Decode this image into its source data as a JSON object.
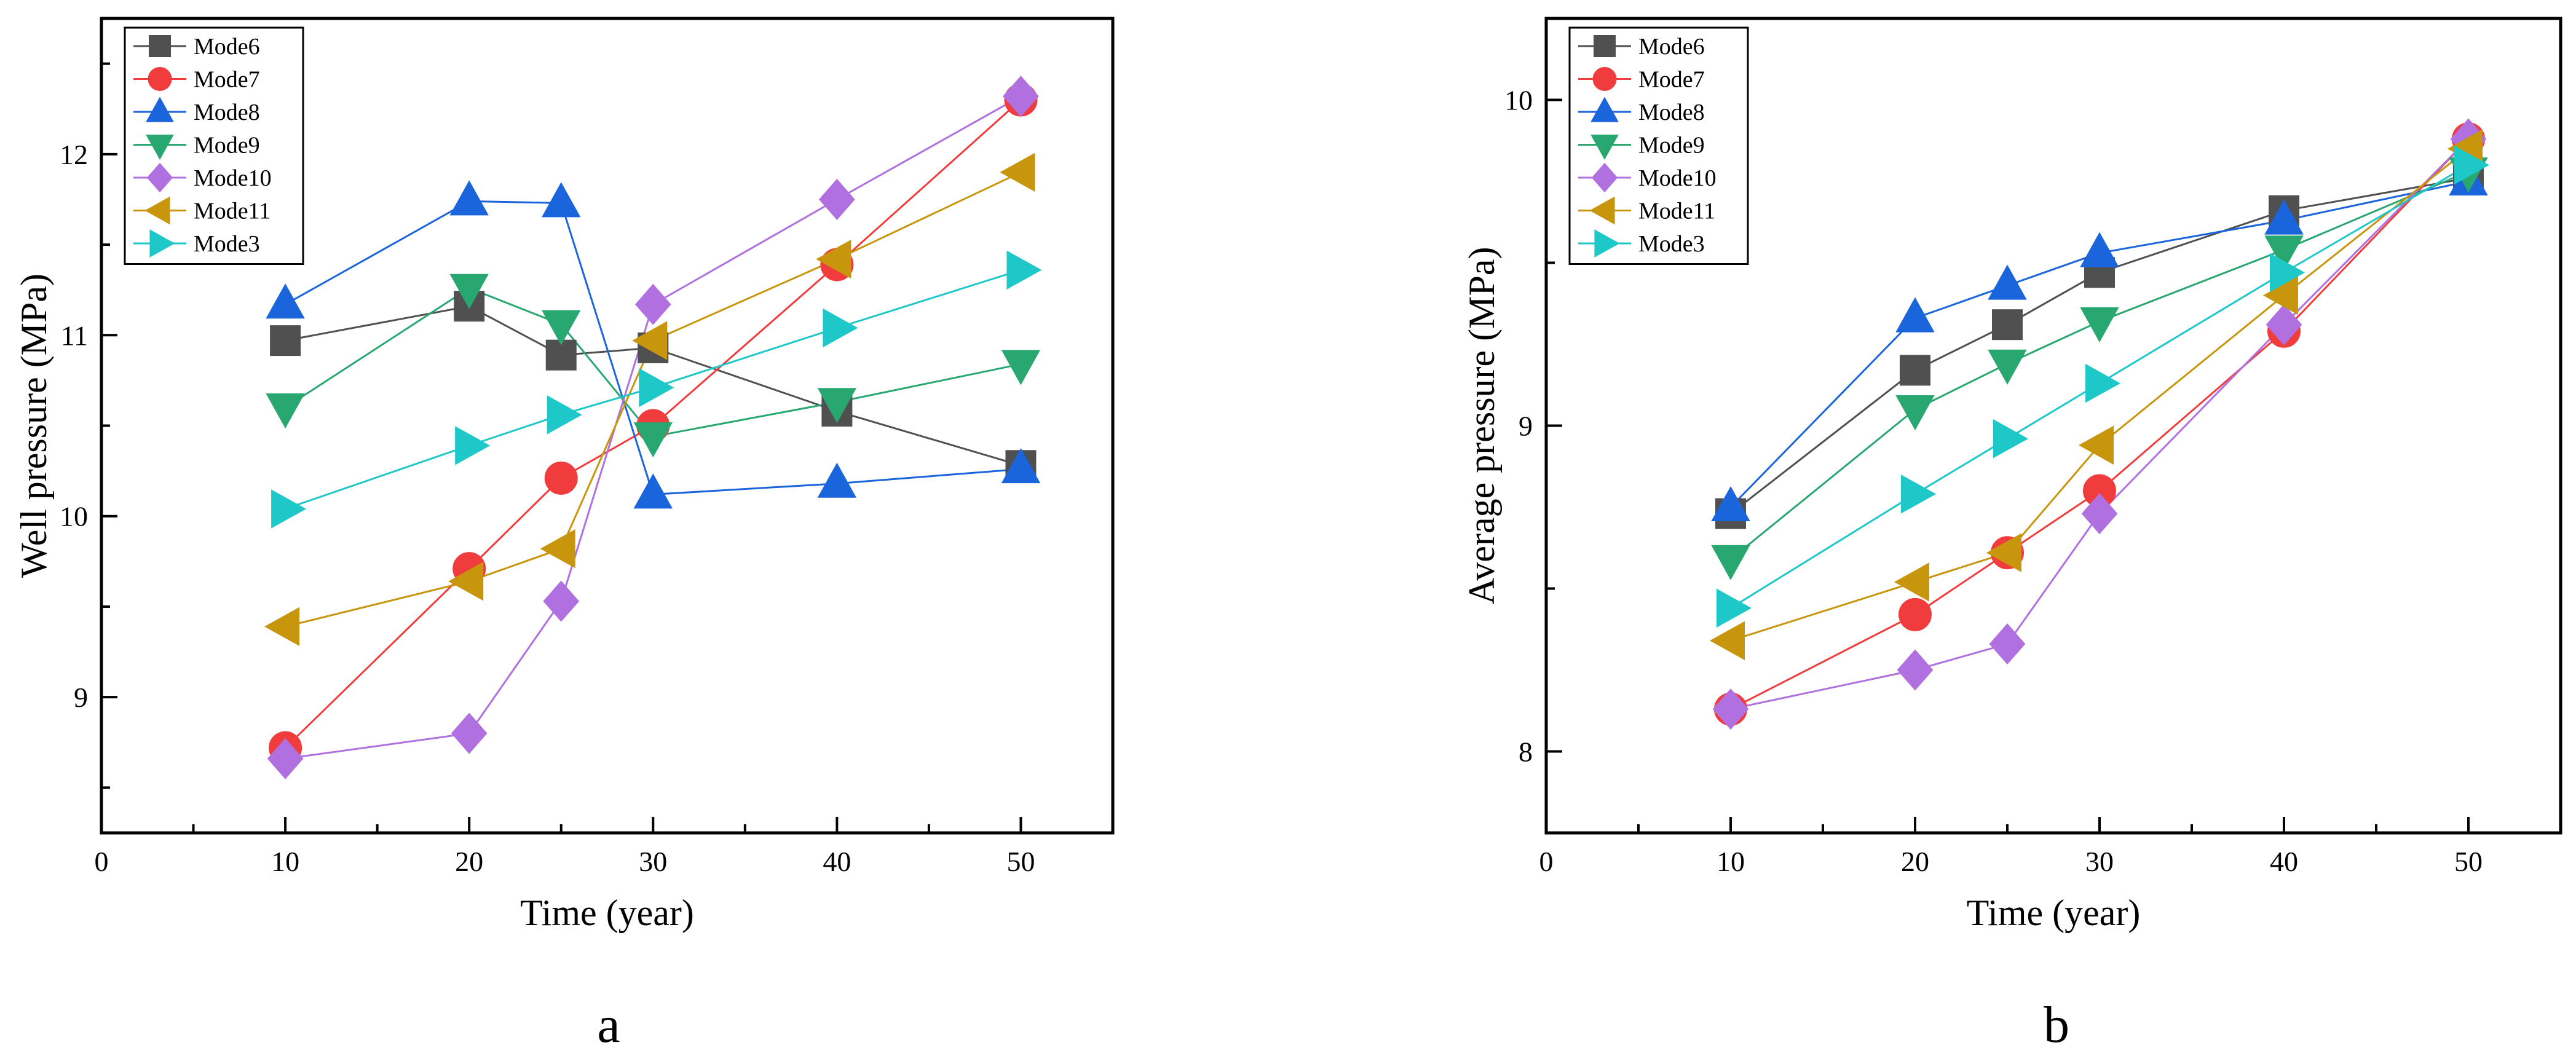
{
  "chart_data": [
    {
      "type": "line",
      "panel_label": "a",
      "xlabel": "Time (year)",
      "ylabel": "Well pressure (MPa)",
      "xlim": [
        0,
        55
      ],
      "ylim": [
        8.25,
        12.75
      ],
      "x_ticks": [
        0,
        10,
        20,
        30,
        40,
        50
      ],
      "y_ticks": [
        9,
        10,
        11,
        12
      ],
      "legend_position": "top-left",
      "x": [
        10,
        20,
        25,
        30,
        40,
        50
      ],
      "series": [
        {
          "name": "Mode6",
          "color": "#505050",
          "marker": "square",
          "values": [
            10.97,
            11.16,
            10.89,
            10.93,
            10.58,
            10.28
          ]
        },
        {
          "name": "Mode7",
          "color": "#f03c3c",
          "marker": "circle",
          "values": [
            8.72,
            9.71,
            10.21,
            10.5,
            11.39,
            12.3
          ]
        },
        {
          "name": "Mode8",
          "color": "#1a64dc",
          "marker": "triangle-up",
          "values": [
            11.17,
            11.74,
            11.73,
            10.12,
            10.18,
            10.26
          ]
        },
        {
          "name": "Mode9",
          "color": "#28a870",
          "marker": "triangle-down",
          "values": [
            10.6,
            11.26,
            11.06,
            10.44,
            10.63,
            10.84
          ]
        },
        {
          "name": "Mode10",
          "color": "#b070e0",
          "marker": "diamond",
          "values": [
            8.66,
            8.8,
            9.53,
            11.17,
            11.75,
            12.32
          ]
        },
        {
          "name": "Mode11",
          "color": "#c8960c",
          "marker": "triangle-left",
          "values": [
            9.39,
            9.64,
            9.82,
            10.97,
            11.42,
            11.9
          ]
        },
        {
          "name": "Mode3",
          "color": "#1ec8c8",
          "marker": "triangle-right",
          "values": [
            10.04,
            10.39,
            10.56,
            10.71,
            11.04,
            11.36
          ]
        }
      ]
    },
    {
      "type": "line",
      "panel_label": "b",
      "xlabel": "Time (year)",
      "ylabel": "Average pressure (MPa)",
      "xlim": [
        0,
        55
      ],
      "ylim": [
        7.75,
        10.25
      ],
      "x_ticks": [
        0,
        10,
        20,
        30,
        40,
        50
      ],
      "y_ticks": [
        8,
        9,
        10
      ],
      "legend_position": "top-left",
      "x": [
        10,
        20,
        25,
        30,
        40,
        50
      ],
      "series": [
        {
          "name": "Mode6",
          "color": "#505050",
          "marker": "square",
          "values": [
            8.73,
            9.17,
            9.31,
            9.47,
            9.66,
            9.76
          ]
        },
        {
          "name": "Mode7",
          "color": "#f03c3c",
          "marker": "circle",
          "values": [
            8.13,
            8.42,
            8.61,
            8.8,
            9.29,
            9.88
          ]
        },
        {
          "name": "Mode8",
          "color": "#1a64dc",
          "marker": "triangle-up",
          "values": [
            8.75,
            9.33,
            9.43,
            9.53,
            9.63,
            9.75
          ]
        },
        {
          "name": "Mode9",
          "color": "#28a870",
          "marker": "triangle-down",
          "values": [
            8.59,
            9.05,
            9.19,
            9.32,
            9.54,
            9.78
          ]
        },
        {
          "name": "Mode10",
          "color": "#b070e0",
          "marker": "diamond",
          "values": [
            8.13,
            8.25,
            8.33,
            8.73,
            9.31,
            9.88
          ]
        },
        {
          "name": "Mode11",
          "color": "#c8960c",
          "marker": "triangle-left",
          "values": [
            8.34,
            8.52,
            8.61,
            8.94,
            9.4,
            9.85
          ]
        },
        {
          "name": "Mode3",
          "color": "#1ec8c8",
          "marker": "triangle-right",
          "values": [
            8.44,
            8.79,
            8.96,
            9.13,
            9.47,
            9.8
          ]
        }
      ]
    }
  ]
}
